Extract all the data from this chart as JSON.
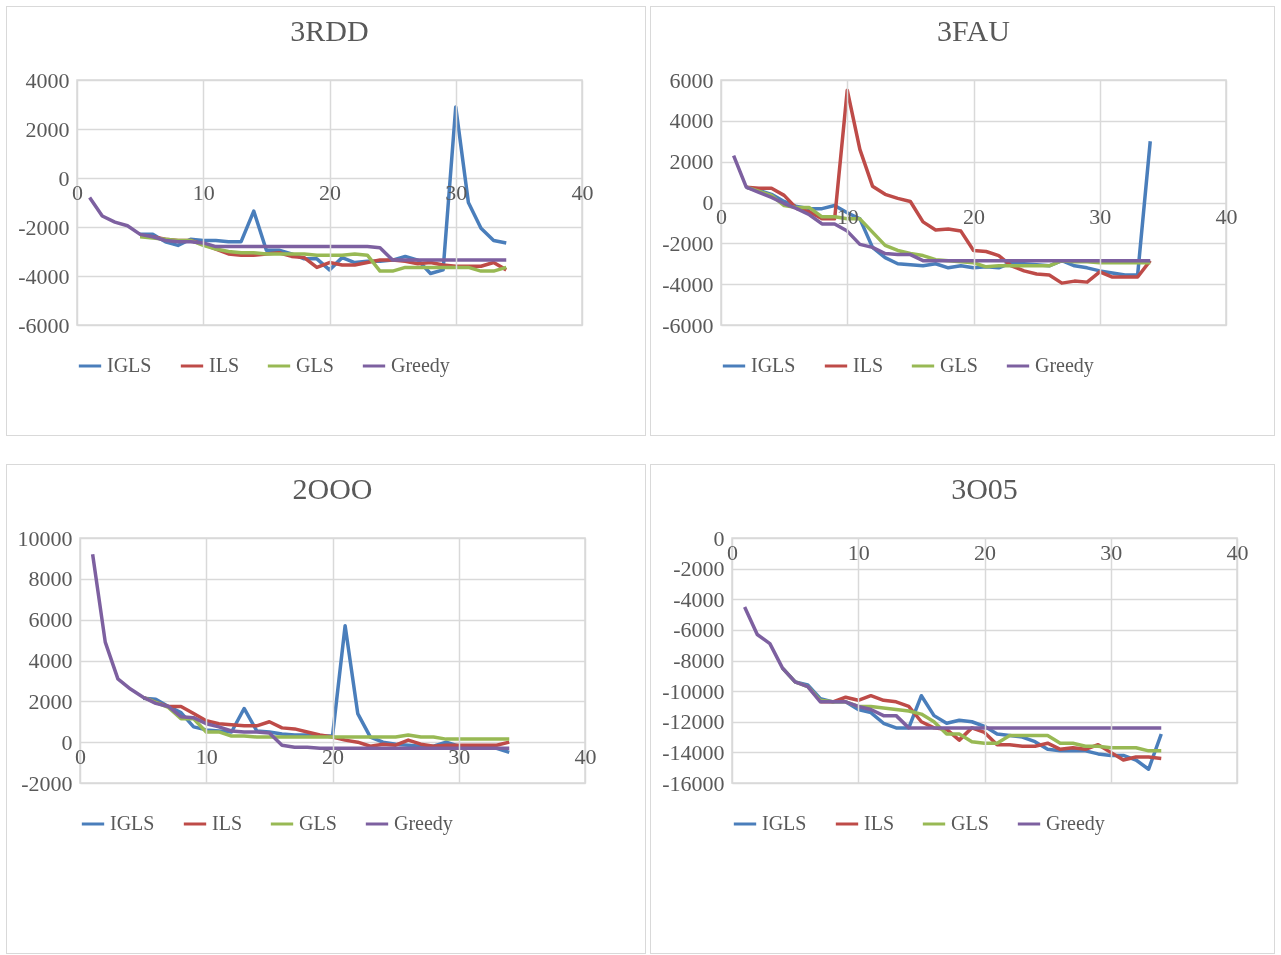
{
  "chart_data": [
    {
      "type": "line",
      "title": "3RDD",
      "x": [
        1,
        2,
        3,
        4,
        5,
        6,
        7,
        8,
        9,
        10,
        11,
        12,
        13,
        14,
        15,
        16,
        17,
        18,
        19,
        20,
        21,
        22,
        23,
        24,
        25,
        26,
        27,
        28,
        29,
        30,
        31,
        32,
        33,
        34
      ],
      "xlim": [
        0,
        40
      ],
      "xticks": [
        0,
        10,
        20,
        30,
        40
      ],
      "ylim": [
        -6000,
        4000
      ],
      "yticks": [
        -6000,
        -4000,
        -2000,
        0,
        2000,
        4000
      ],
      "grid": true,
      "legend": "bottom",
      "marker": "none",
      "line_style": "solid",
      "series": [
        {
          "name": "IGLS",
          "color": "#4a7ebb",
          "values": [
            null,
            null,
            null,
            null,
            -2300,
            -2300,
            -2600,
            -2750,
            -2500,
            -2550,
            -2550,
            -2600,
            -2600,
            -1350,
            -2950,
            -2950,
            -3100,
            -3300,
            -3300,
            -3750,
            -3250,
            -3450,
            -3400,
            -3400,
            -3350,
            -3200,
            -3350,
            -3900,
            -3750,
            2900,
            -1000,
            -2050,
            -2550,
            -2650
          ]
        },
        {
          "name": "ILS",
          "color": "#be4b48",
          "values": [
            null,
            null,
            null,
            null,
            -2350,
            -2400,
            -2500,
            -2550,
            -2550,
            -2700,
            -2900,
            -3100,
            -3150,
            -3150,
            -3100,
            -3050,
            -3200,
            -3250,
            -3650,
            -3450,
            -3550,
            -3550,
            -3450,
            -3350,
            -3350,
            -3400,
            -3500,
            -3450,
            -3550,
            -3600,
            -3600,
            -3600,
            -3450,
            -3750
          ]
        },
        {
          "name": "GLS",
          "color": "#98b954",
          "values": [
            null,
            null,
            null,
            null,
            -2400,
            -2450,
            -2500,
            -2550,
            -2550,
            -2750,
            -2900,
            -3000,
            -3050,
            -3050,
            -3100,
            -3100,
            -3100,
            -3100,
            -3150,
            -3150,
            -3150,
            -3100,
            -3150,
            -3800,
            -3800,
            -3650,
            -3650,
            -3650,
            -3650,
            -3650,
            -3650,
            -3800,
            -3800,
            -3650
          ]
        },
        {
          "name": "Greedy",
          "color": "#7d60a0",
          "values": [
            -800,
            -1550,
            -1800,
            -1950,
            -2300,
            -2400,
            -2550,
            -2600,
            -2600,
            -2650,
            -2800,
            -2800,
            -2800,
            -2800,
            -2800,
            -2800,
            -2800,
            -2800,
            -2800,
            -2800,
            -2800,
            -2800,
            -2800,
            -2850,
            -3350,
            -3350,
            -3350,
            -3350,
            -3350,
            -3350,
            -3350,
            -3350,
            -3350,
            -3350
          ]
        }
      ]
    },
    {
      "type": "line",
      "title": "3FAU",
      "x": [
        1,
        2,
        3,
        4,
        5,
        6,
        7,
        8,
        9,
        10,
        11,
        12,
        13,
        14,
        15,
        16,
        17,
        18,
        19,
        20,
        21,
        22,
        23,
        24,
        25,
        26,
        27,
        28,
        29,
        30,
        31,
        32,
        33,
        34
      ],
      "xlim": [
        0,
        40
      ],
      "xticks": [
        0,
        10,
        20,
        30,
        40
      ],
      "ylim": [
        -6000,
        6000
      ],
      "yticks": [
        -6000,
        -4000,
        -2000,
        0,
        2000,
        4000,
        6000
      ],
      "grid": true,
      "legend": "bottom",
      "marker": "none",
      "line_style": "solid",
      "series": [
        {
          "name": "IGLS",
          "color": "#4a7ebb",
          "values": [
            null,
            750,
            600,
            400,
            50,
            -200,
            -300,
            -300,
            -150,
            -500,
            -800,
            -2200,
            -2700,
            -3000,
            -3050,
            -3100,
            -3000,
            -3200,
            -3100,
            -3200,
            -3150,
            -3200,
            -2950,
            -3000,
            -3050,
            -3100,
            -2850,
            -3100,
            -3200,
            -3350,
            -3450,
            -3550,
            -3550,
            3000
          ]
        },
        {
          "name": "ILS",
          "color": "#be4b48",
          "values": [
            null,
            750,
            700,
            700,
            350,
            -300,
            -450,
            -800,
            -800,
            5500,
            2600,
            800,
            400,
            200,
            50,
            -950,
            -1350,
            -1300,
            -1400,
            -2350,
            -2400,
            -2600,
            -3100,
            -3350,
            -3500,
            -3550,
            -3950,
            -3850,
            -3900,
            -3400,
            -3650,
            -3650,
            -3650,
            -2850
          ]
        },
        {
          "name": "GLS",
          "color": "#98b954",
          "values": [
            null,
            750,
            550,
            350,
            -150,
            -250,
            -250,
            -700,
            -700,
            -800,
            -800,
            -1450,
            -2100,
            -2350,
            -2500,
            -2600,
            -2800,
            -2850,
            -2900,
            -2950,
            -3150,
            -3100,
            -3100,
            -3100,
            -3100,
            -3100,
            -2850,
            -2900,
            -2900,
            -2950,
            -2950,
            -2950,
            -2950,
            -2950
          ]
        },
        {
          "name": "Greedy",
          "color": "#7d60a0",
          "values": [
            2300,
            750,
            500,
            250,
            -50,
            -300,
            -600,
            -1050,
            -1050,
            -1400,
            -2050,
            -2200,
            -2500,
            -2550,
            -2550,
            -2850,
            -2850,
            -2850,
            -2850,
            -2850,
            -2850,
            -2850,
            -2850,
            -2850,
            -2850,
            -2850,
            -2850,
            -2850,
            -2850,
            -2850,
            -2850,
            -2850,
            -2850,
            -2850
          ]
        }
      ]
    },
    {
      "type": "line",
      "title": "2OOO",
      "x": [
        1,
        2,
        3,
        4,
        5,
        6,
        7,
        8,
        9,
        10,
        11,
        12,
        13,
        14,
        15,
        16,
        17,
        18,
        19,
        20,
        21,
        22,
        23,
        24,
        25,
        26,
        27,
        28,
        29,
        30,
        31,
        32,
        33,
        34
      ],
      "xlim": [
        0,
        40
      ],
      "xticks": [
        0,
        10,
        20,
        30,
        40
      ],
      "ylim": [
        -2000,
        10000
      ],
      "yticks": [
        -2000,
        0,
        2000,
        4000,
        6000,
        8000,
        10000
      ],
      "grid": true,
      "legend": "bottom",
      "marker": "none",
      "line_style": "solid",
      "series": [
        {
          "name": "IGLS",
          "color": "#4a7ebb",
          "values": [
            null,
            null,
            null,
            null,
            2150,
            2100,
            1750,
            1450,
            750,
            600,
            550,
            500,
            1650,
            550,
            500,
            400,
            350,
            350,
            300,
            300,
            5700,
            1400,
            250,
            0,
            -100,
            -150,
            -200,
            -200,
            0,
            -200,
            -250,
            -250,
            -300,
            -500
          ]
        },
        {
          "name": "ILS",
          "color": "#be4b48",
          "values": [
            null,
            null,
            null,
            null,
            2200,
            1950,
            1750,
            1750,
            1400,
            1050,
            900,
            850,
            800,
            800,
            1000,
            700,
            650,
            500,
            350,
            250,
            100,
            0,
            -200,
            -100,
            -150,
            100,
            -100,
            -200,
            -150,
            -150,
            -150,
            -150,
            -150,
            0
          ]
        },
        {
          "name": "GLS",
          "color": "#98b954",
          "values": [
            null,
            null,
            null,
            null,
            2200,
            1950,
            1700,
            1150,
            1150,
            500,
            500,
            300,
            300,
            250,
            250,
            250,
            250,
            250,
            250,
            250,
            250,
            250,
            250,
            250,
            250,
            350,
            250,
            250,
            150,
            150,
            150,
            150,
            150,
            150
          ]
        },
        {
          "name": "Greedy",
          "color": "#7d60a0",
          "values": [
            9200,
            4900,
            3100,
            2600,
            2200,
            1900,
            1750,
            1250,
            1200,
            900,
            750,
            550,
            500,
            500,
            450,
            -150,
            -250,
            -250,
            -300,
            -300,
            -300,
            -300,
            -300,
            -300,
            -300,
            -300,
            -300,
            -300,
            -300,
            -300,
            -300,
            -300,
            -300,
            -300
          ]
        }
      ]
    },
    {
      "type": "line",
      "title": "3O05",
      "x": [
        1,
        2,
        3,
        4,
        5,
        6,
        7,
        8,
        9,
        10,
        11,
        12,
        13,
        14,
        15,
        16,
        17,
        18,
        19,
        20,
        21,
        22,
        23,
        24,
        25,
        26,
        27,
        28,
        29,
        30,
        31,
        32,
        33,
        34
      ],
      "xlim": [
        0,
        40
      ],
      "xticks": [
        0,
        10,
        20,
        30,
        40
      ],
      "ylim": [
        -16000,
        0
      ],
      "yticks": [
        -16000,
        -14000,
        -12000,
        -10000,
        -8000,
        -6000,
        -4000,
        -2000,
        0
      ],
      "grid": true,
      "legend": "bottom",
      "marker": "none",
      "line_style": "solid",
      "series": [
        {
          "name": "IGLS",
          "color": "#4a7ebb",
          "values": [
            null,
            null,
            null,
            -8500,
            -9400,
            -9600,
            -10500,
            -10700,
            -10700,
            -11200,
            -11400,
            -12100,
            -12400,
            -12400,
            -10300,
            -11600,
            -12100,
            -11900,
            -12000,
            -12300,
            -12800,
            -12900,
            -13000,
            -13300,
            -13800,
            -13900,
            -13900,
            -13900,
            -14100,
            -14200,
            -14200,
            -14500,
            -15100,
            -12800
          ]
        },
        {
          "name": "ILS",
          "color": "#be4b48",
          "values": [
            null,
            null,
            null,
            null,
            null,
            null,
            -10700,
            -10700,
            -10400,
            -10600,
            -10300,
            -10600,
            -10700,
            -11000,
            -12000,
            -12400,
            -12500,
            -13200,
            -12400,
            -12700,
            -13500,
            -13500,
            -13600,
            -13600,
            -13400,
            -13800,
            -13700,
            -13800,
            -13500,
            -14000,
            -14500,
            -14300,
            -14300,
            -14400
          ]
        },
        {
          "name": "GLS",
          "color": "#98b954",
          "values": [
            null,
            null,
            null,
            -8500,
            -9400,
            -9700,
            -10600,
            -10700,
            -10700,
            -11000,
            -11000,
            -11100,
            -11200,
            -11300,
            -11500,
            -12000,
            -12800,
            -12800,
            -13300,
            -13400,
            -13400,
            -12900,
            -12900,
            -12900,
            -12900,
            -13400,
            -13400,
            -13600,
            -13600,
            -13700,
            -13700,
            -13700,
            -13900,
            -13900
          ]
        },
        {
          "name": "Greedy",
          "color": "#7d60a0",
          "values": [
            -4500,
            -6300,
            -6900,
            -8500,
            -9400,
            -9700,
            -10700,
            -10700,
            -10700,
            -11000,
            -11200,
            -11600,
            -11600,
            -12400,
            -12400,
            -12400,
            -12400,
            -12400,
            -12400,
            -12400,
            -12400,
            -12400,
            -12400,
            -12400,
            -12400,
            -12400,
            -12400,
            -12400,
            -12400,
            -12400,
            -12400,
            -12400,
            -12400,
            -12400
          ]
        }
      ]
    }
  ]
}
